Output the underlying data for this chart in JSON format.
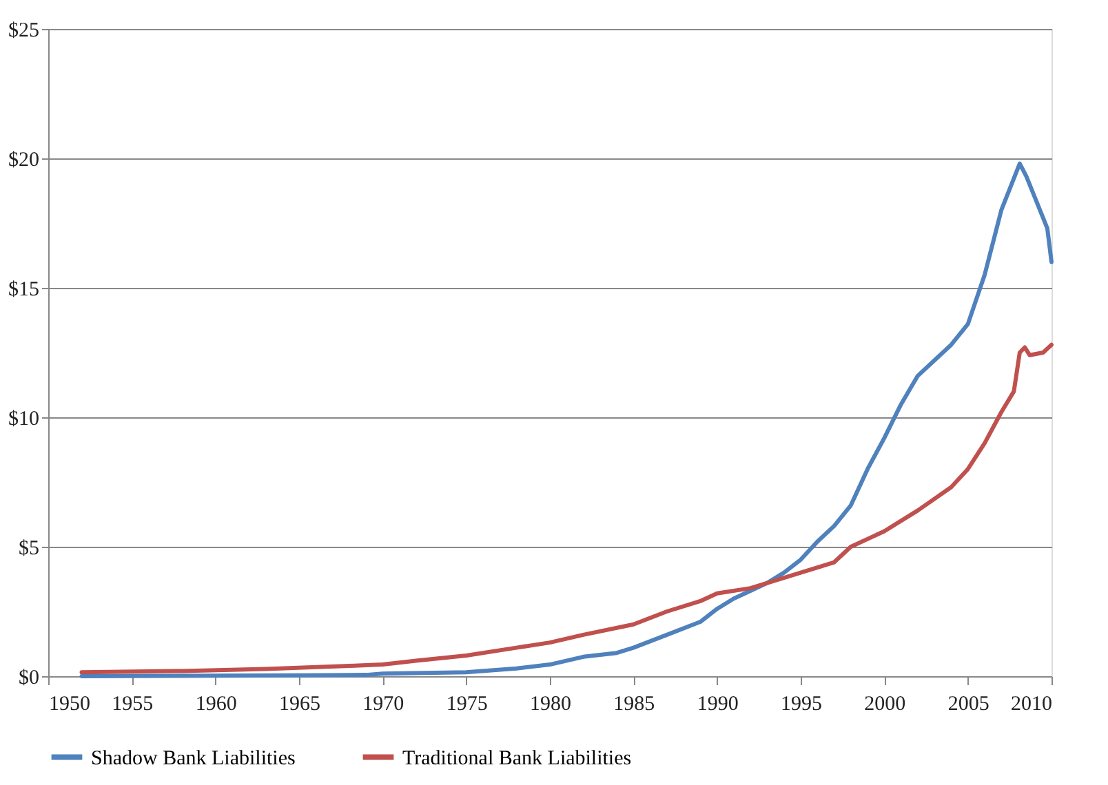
{
  "chart_data": {
    "type": "line",
    "xlim": [
      1950,
      2010
    ],
    "xticks": [
      1950,
      1955,
      1960,
      1965,
      1970,
      1975,
      1980,
      1985,
      1990,
      1995,
      2000,
      2005,
      2010
    ],
    "ylim": [
      0,
      25
    ],
    "yticks": [
      {
        "value": 0,
        "label": "$0"
      },
      {
        "value": 5,
        "label": "$5"
      },
      {
        "value": 10,
        "label": "$10"
      },
      {
        "value": 15,
        "label": "$15"
      },
      {
        "value": 20,
        "label": "$20"
      },
      {
        "value": 25,
        "label": "$25"
      }
    ],
    "grid": "y",
    "legend": "bottom",
    "line_style": "solid",
    "marker": "none",
    "series": [
      {
        "name": "Shadow Bank Liabilities",
        "color": "#4f81bd",
        "x": [
          1952,
          1960,
          1965,
          1969,
          1970,
          1975,
          1978,
          1980,
          1982,
          1984,
          1985,
          1987,
          1989,
          1990,
          1991,
          1992,
          1993,
          1994,
          1995,
          1996,
          1997,
          1998,
          1999,
          2000,
          2001,
          2002,
          2003,
          2004,
          2005,
          2006,
          2007,
          2008.1,
          2008.5,
          2009,
          2009.75,
          2010
        ],
        "values": [
          0,
          0.02,
          0.03,
          0.05,
          0.1,
          0.15,
          0.3,
          0.45,
          0.75,
          0.9,
          1.1,
          1.6,
          2.1,
          2.6,
          3.0,
          3.3,
          3.6,
          4.0,
          4.5,
          5.2,
          5.8,
          6.6,
          8.0,
          9.2,
          10.5,
          11.6,
          12.2,
          12.8,
          13.6,
          15.5,
          18.0,
          19.8,
          19.3,
          18.5,
          17.3,
          16.0
        ]
      },
      {
        "name": "Traditional Bank Liabilities",
        "color": "#c0504d",
        "x": [
          1952,
          1958,
          1963,
          1968,
          1970,
          1972,
          1975,
          1978,
          1980,
          1982,
          1985,
          1987,
          1989,
          1990,
          1992,
          1994,
          1995,
          1997,
          1998,
          2000,
          2002,
          2004,
          2005,
          2006,
          2007,
          2007.75,
          2008.1,
          2008.4,
          2008.7,
          2009.5,
          2010
        ],
        "values": [
          0.15,
          0.2,
          0.28,
          0.4,
          0.45,
          0.6,
          0.8,
          1.1,
          1.3,
          1.6,
          2.0,
          2.5,
          2.9,
          3.2,
          3.4,
          3.8,
          4.0,
          4.4,
          5.0,
          5.6,
          6.4,
          7.3,
          8.0,
          9.0,
          10.2,
          11.0,
          12.5,
          12.7,
          12.4,
          12.5,
          12.8
        ]
      }
    ]
  }
}
